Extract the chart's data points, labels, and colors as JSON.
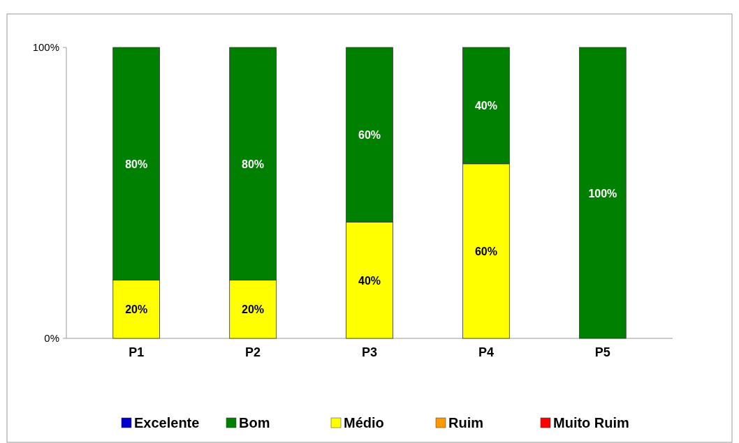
{
  "chart_data": {
    "type": "bar",
    "stacked": true,
    "categories": [
      "P1",
      "P2",
      "P3",
      "P4",
      "P5"
    ],
    "series": [
      {
        "name": "Muito Ruim",
        "color": "#ff0000",
        "values": [
          0,
          0,
          0,
          0,
          0
        ],
        "value_labels": [
          null,
          null,
          null,
          null,
          null
        ]
      },
      {
        "name": "Ruim",
        "color": "#ff9900",
        "values": [
          0,
          0,
          0,
          0,
          0
        ],
        "value_labels": [
          null,
          null,
          null,
          null,
          null
        ]
      },
      {
        "name": "Médio",
        "color": "#ffff00",
        "values": [
          20,
          20,
          40,
          60,
          0
        ],
        "value_labels": [
          "20%",
          "20%",
          "40%",
          "60%",
          null
        ]
      },
      {
        "name": "Bom",
        "color": "#008000",
        "values": [
          80,
          80,
          60,
          40,
          100
        ],
        "value_labels": [
          "80%",
          "80%",
          "60%",
          "40%",
          "100%"
        ]
      },
      {
        "name": "Excelente",
        "color": "#0000cc",
        "values": [
          0,
          0,
          0,
          0,
          0
        ],
        "value_labels": [
          null,
          null,
          null,
          null,
          null
        ]
      }
    ],
    "ylim": [
      0,
      100
    ],
    "yticks": [
      {
        "value": 0,
        "label": "0%"
      },
      {
        "value": 100,
        "label": "100%"
      }
    ],
    "legend": "bottom"
  }
}
